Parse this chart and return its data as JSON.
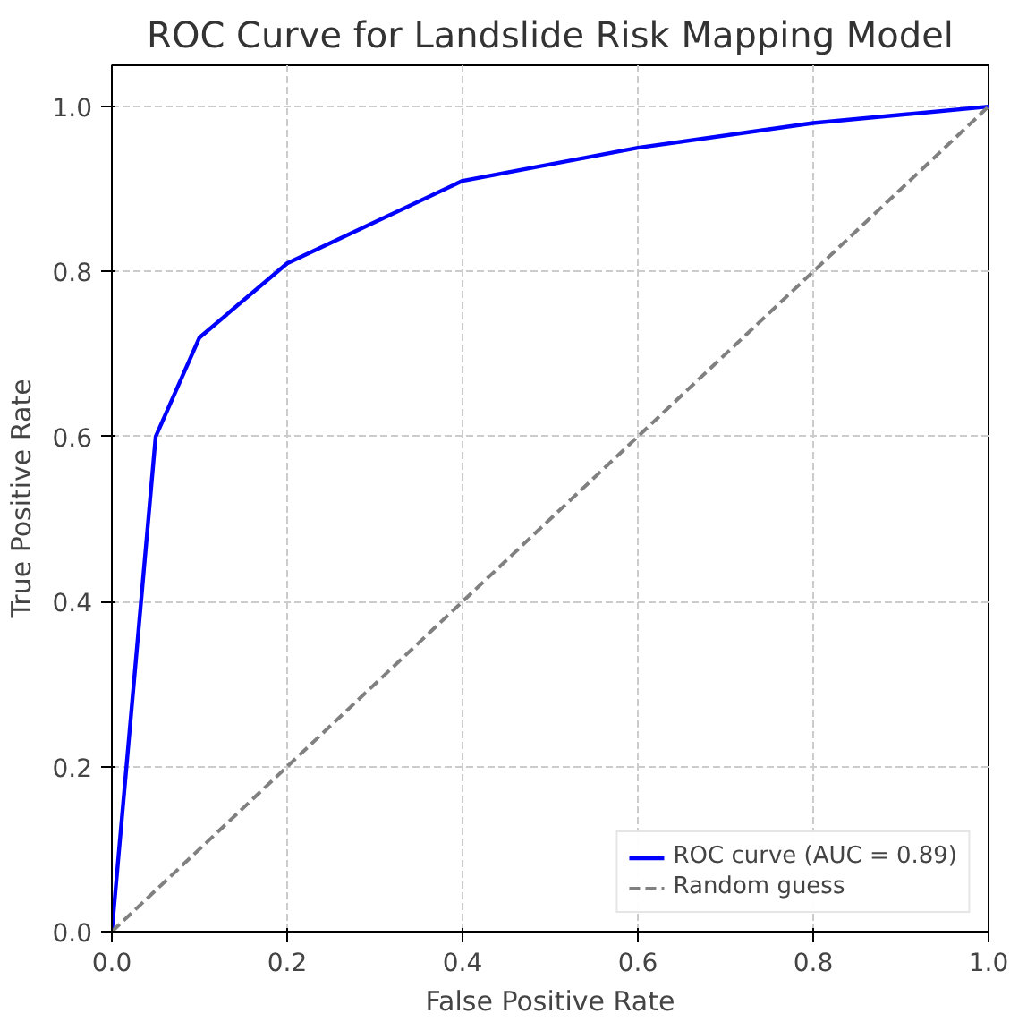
{
  "chart_data": {
    "type": "line",
    "title": "ROC Curve for Landslide Risk Mapping Model",
    "xlabel": "False Positive Rate",
    "ylabel": "True Positive Rate",
    "xlim": [
      0,
      1
    ],
    "ylim": [
      0,
      1.05
    ],
    "xticks": [
      {
        "value": 0,
        "label": "0.0"
      },
      {
        "value": 0.2,
        "label": "0.2"
      },
      {
        "value": 0.4,
        "label": "0.4"
      },
      {
        "value": 0.6,
        "label": "0.6"
      },
      {
        "value": 0.8,
        "label": "0.8"
      },
      {
        "value": 1,
        "label": "1.0"
      }
    ],
    "yticks": [
      {
        "value": 0,
        "label": "0.0"
      },
      {
        "value": 0.2,
        "label": "0.2"
      },
      {
        "value": 0.4,
        "label": "0.4"
      },
      {
        "value": 0.6,
        "label": "0.6"
      },
      {
        "value": 0.8,
        "label": "0.8"
      },
      {
        "value": 1,
        "label": "1.0"
      }
    ],
    "grid": true,
    "legend": "bottom right",
    "series": [
      {
        "name": "ROC curve (AUC = 0.89)",
        "color": "#0000ff",
        "line_style": "solid",
        "x": [
          0,
          0.05,
          0.1,
          0.2,
          0.4,
          0.6,
          0.8,
          1
        ],
        "values": [
          0,
          0.6,
          0.72,
          0.81,
          0.91,
          0.95,
          0.98,
          1
        ]
      },
      {
        "name": "Random guess",
        "color": "#808080",
        "line_style": "dashed",
        "x": [
          0,
          1
        ],
        "values": [
          0,
          1
        ]
      }
    ]
  }
}
